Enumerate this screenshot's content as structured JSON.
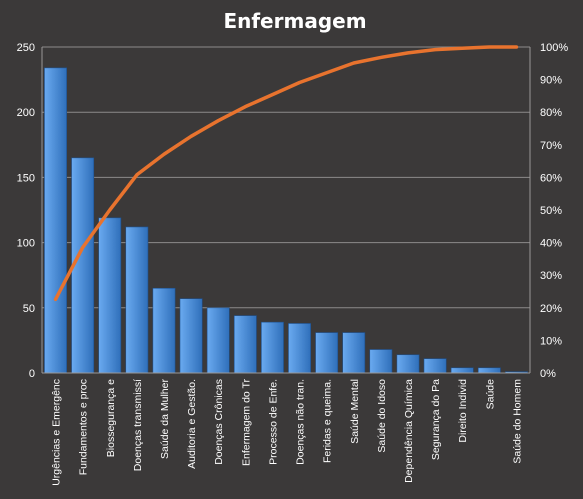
{
  "chart_data": {
    "type": "bar",
    "title": "Enfermagem",
    "categories": [
      "Urgências e Emergênc",
      "Fundamentos e proc",
      "Biossegurança e",
      "Doenças transmissí",
      "Saúde da Mulher",
      "Auditoria e Gestão.",
      "Doenças Crônicas",
      "Enfermagem do Tr",
      "Processo de Enfe.",
      "Doenças não tran.",
      "Feridas e queima.",
      "Saúde Mental",
      "Saúde do Idoso",
      "Dependência Química",
      "Segurança do Pa",
      "Direito Individ",
      "Saúde",
      "Saúde do Homem"
    ],
    "series": [
      {
        "type": "bar",
        "values": [
          234,
          165,
          119,
          112,
          65,
          57,
          50,
          44,
          39,
          38,
          31,
          31,
          18,
          14,
          11,
          4,
          4,
          1
        ],
        "color": "#4a90d9"
      },
      {
        "type": "line",
        "axis": "secondary",
        "values": [
          22.6,
          38.5,
          50.0,
          60.8,
          67.1,
          72.6,
          77.4,
          81.7,
          85.4,
          89.1,
          92.1,
          95.1,
          96.8,
          98.2,
          99.2,
          99.6,
          100.0,
          100.0
        ],
        "color": "#e8732e"
      }
    ],
    "y_axis": {
      "ticks": [
        "0",
        "50",
        "100",
        "150",
        "200",
        "250"
      ],
      "ylim": [
        0,
        250
      ]
    },
    "y2_axis": {
      "ticks": [
        "0%",
        "10%",
        "20%",
        "30%",
        "40%",
        "50%",
        "60%",
        "70%",
        "80%",
        "90%",
        "100%"
      ],
      "ylim": [
        0,
        100
      ]
    },
    "grid": true,
    "legend": "none"
  }
}
